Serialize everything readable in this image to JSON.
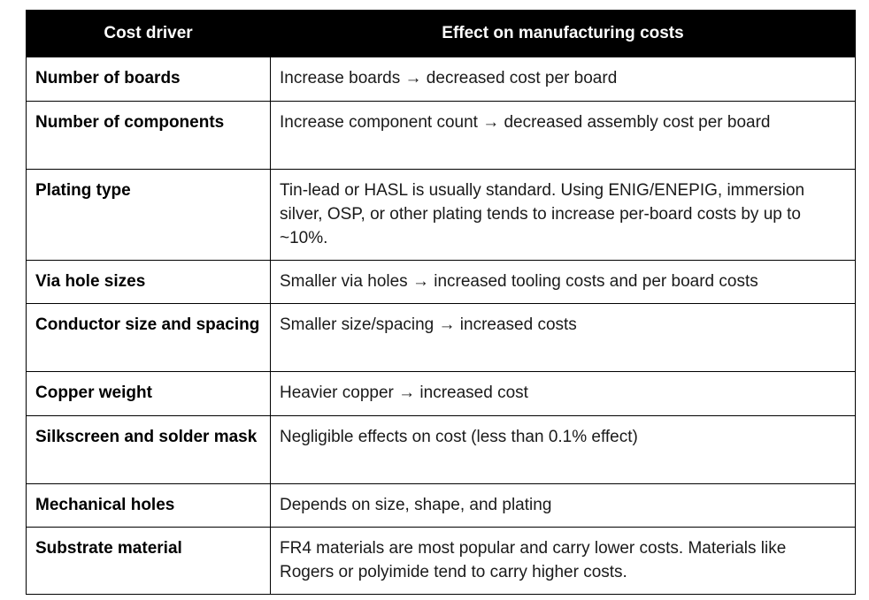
{
  "table": {
    "headers": [
      "Cost driver",
      "Effect on manufacturing costs"
    ],
    "rows": [
      {
        "driver": "Number of boards",
        "effect": "Increase boards → decreased cost per board"
      },
      {
        "driver": "Number of components",
        "effect": "Increase component count → decreased assembly cost per board"
      },
      {
        "driver": "Plating type",
        "effect": "Tin-lead or HASL is usually standard. Using ENIG/ENEPIG, immersion silver, OSP, or other plating tends to increase per-board costs by up to ~10%."
      },
      {
        "driver": "Via hole sizes",
        "effect": "Smaller via holes → increased tooling costs and per board costs"
      },
      {
        "driver": "Conductor size and spacing",
        "effect": "Smaller size/spacing → increased costs"
      },
      {
        "driver": "Copper weight",
        "effect": "Heavier copper → increased cost"
      },
      {
        "driver": "Silkscreen and solder mask",
        "effect": "Negligible effects on cost (less than 0.1% effect)"
      },
      {
        "driver": "Mechanical holes",
        "effect": "Depends on size, shape, and plating"
      },
      {
        "driver": "Substrate material",
        "effect": "FR4 materials are most popular and carry lower costs. Materials like Rogers or polyimide tend to carry higher costs."
      }
    ]
  }
}
